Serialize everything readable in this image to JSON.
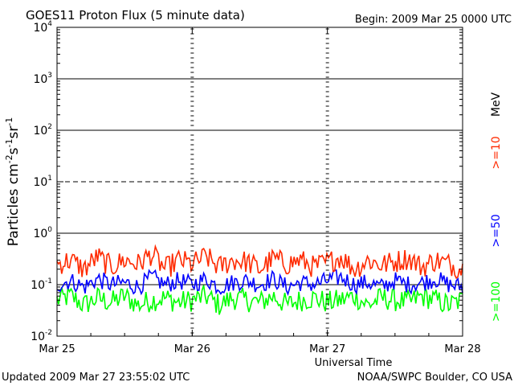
{
  "chart_data": {
    "type": "line",
    "title": "GOES11 Proton Flux (5 minute data)",
    "subtitle": "Begin: 2009 Mar 25 0000 UTC",
    "xlabel": "Universal Time",
    "ylabel_parts": {
      "main": "Particles cm",
      "sup1": "-2",
      "s": "s",
      "sup2": "-1",
      "sr": "sr",
      "sup3": "-1"
    },
    "ylog": true,
    "ylim": [
      0.01,
      10000
    ],
    "xlim": [
      0,
      3
    ],
    "x_tick_labels": [
      "Mar 25",
      "Mar 26",
      "Mar 27",
      "Mar 28"
    ],
    "y_ticks": [
      {
        "value": 10000,
        "base": "10",
        "exp": "4"
      },
      {
        "value": 1000,
        "base": "10",
        "exp": "3"
      },
      {
        "value": 100,
        "base": "10",
        "exp": "2"
      },
      {
        "value": 10,
        "base": "10",
        "exp": "1"
      },
      {
        "value": 1,
        "base": "10",
        "exp": "0"
      },
      {
        "value": 0.1,
        "base": "10",
        "exp": "-1"
      },
      {
        "value": 0.01,
        "base": "10",
        "exp": "-2"
      }
    ],
    "threshold_lines": [
      {
        "value": 1000,
        "style": "solid"
      },
      {
        "value": 100,
        "style": "solid"
      },
      {
        "value": 10,
        "style": "dashed"
      },
      {
        "value": 1,
        "style": "solid"
      },
      {
        "value": 0.1,
        "style": "solid"
      }
    ],
    "series": [
      {
        "name": ">=10",
        "color": "#ff2a00",
        "x": [
          0,
          0.1,
          0.2,
          0.3,
          0.4,
          0.5,
          0.6,
          0.7,
          0.8,
          0.9,
          1.0,
          1.1,
          1.2,
          1.3,
          1.4,
          1.5,
          1.6,
          1.7,
          1.8,
          1.9,
          2.0,
          2.1,
          2.2,
          2.3,
          2.4,
          2.5,
          2.6,
          2.7,
          2.8,
          2.9,
          3.0
        ],
        "values": [
          0.25,
          0.3,
          0.2,
          0.35,
          0.22,
          0.3,
          0.25,
          0.4,
          0.2,
          0.3,
          0.25,
          0.35,
          0.22,
          0.3,
          0.28,
          0.2,
          0.32,
          0.25,
          0.3,
          0.22,
          0.27,
          0.35,
          0.2,
          0.3,
          0.24,
          0.28,
          0.33,
          0.22,
          0.3,
          0.25,
          0.2
        ]
      },
      {
        "name": ">=50",
        "color": "#0000ff",
        "x": [
          0,
          0.1,
          0.2,
          0.3,
          0.4,
          0.5,
          0.6,
          0.7,
          0.8,
          0.9,
          1.0,
          1.1,
          1.2,
          1.3,
          1.4,
          1.5,
          1.6,
          1.7,
          1.8,
          1.9,
          2.0,
          2.1,
          2.2,
          2.3,
          2.4,
          2.5,
          2.6,
          2.7,
          2.8,
          2.9,
          3.0
        ],
        "values": [
          0.1,
          0.12,
          0.09,
          0.13,
          0.1,
          0.11,
          0.09,
          0.14,
          0.1,
          0.12,
          0.1,
          0.13,
          0.09,
          0.11,
          0.12,
          0.1,
          0.13,
          0.09,
          0.11,
          0.1,
          0.12,
          0.14,
          0.1,
          0.11,
          0.09,
          0.12,
          0.1,
          0.11,
          0.13,
          0.1,
          0.09
        ]
      },
      {
        "name": ">=100",
        "color": "#00ff00",
        "x": [
          0,
          0.1,
          0.2,
          0.3,
          0.4,
          0.5,
          0.6,
          0.7,
          0.8,
          0.9,
          1.0,
          1.1,
          1.2,
          1.3,
          1.4,
          1.5,
          1.6,
          1.7,
          1.8,
          1.9,
          2.0,
          2.1,
          2.2,
          2.3,
          2.4,
          2.5,
          2.6,
          2.7,
          2.8,
          2.9,
          3.0
        ],
        "values": [
          0.05,
          0.06,
          0.04,
          0.055,
          0.045,
          0.06,
          0.04,
          0.05,
          0.055,
          0.045,
          0.05,
          0.06,
          0.04,
          0.055,
          0.05,
          0.045,
          0.06,
          0.04,
          0.05,
          0.055,
          0.045,
          0.05,
          0.06,
          0.04,
          0.055,
          0.05,
          0.045,
          0.06,
          0.05,
          0.04,
          0.05
        ]
      }
    ],
    "units_label": "MeV",
    "legend_placement": "right",
    "grid": false
  },
  "footer": {
    "updated": "Updated 2009 Mar 27 23:55:02 UTC",
    "credit": "NOAA/SWPC Boulder, CO USA"
  },
  "colors": {
    "red": "#ff2a00",
    "blue": "#0000ff",
    "green": "#00ff00",
    "axis": "#000000"
  }
}
